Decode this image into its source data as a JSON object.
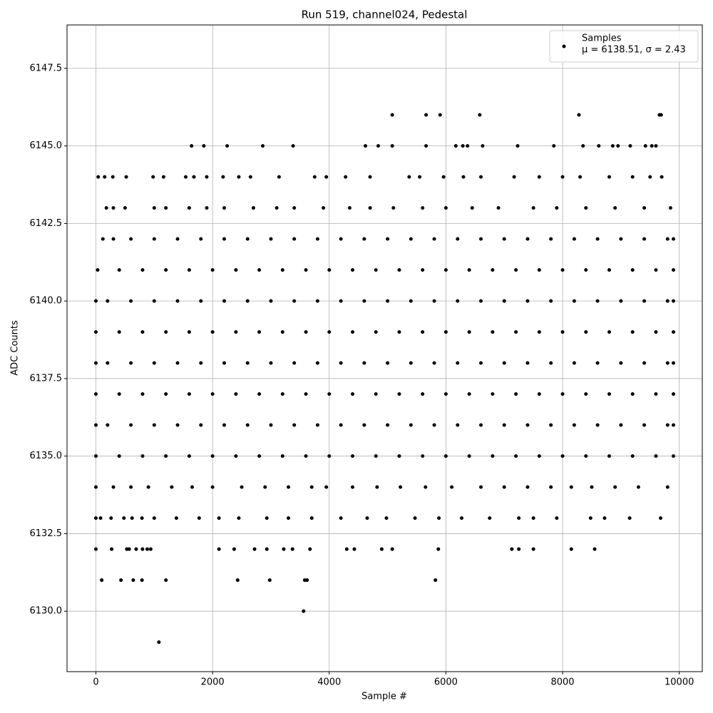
{
  "chart_data": {
    "type": "scatter",
    "title": "Run 519, channel024, Pedestal",
    "x_label": "Sample #",
    "y_label": "ADC Counts",
    "xlim": [
      -495,
      10395
    ],
    "ylim": [
      6128.05,
      6148.9
    ],
    "xticks": [
      0,
      2000,
      4000,
      6000,
      8000,
      10000
    ],
    "yticks": [
      {
        "value": 6130,
        "label": "6130.0"
      },
      {
        "value": 6132.5,
        "label": "6132.5"
      },
      {
        "value": 6135,
        "label": "6135.0"
      },
      {
        "value": 6137.5,
        "label": "6137.5"
      },
      {
        "value": 6140,
        "label": "6140.0"
      },
      {
        "value": 6142.5,
        "label": "6142.5"
      },
      {
        "value": 6145,
        "label": "6145.0"
      },
      {
        "value": 6147.5,
        "label": "6147.5"
      }
    ],
    "grid": true,
    "legend": "upper right",
    "series": [
      {
        "name": "Samples",
        "legend_note": "μ = 6138.51, σ = 2.43",
        "color": "#000000",
        "rows": [
          {
            "y": 6129,
            "x": [
              1080
            ]
          },
          {
            "y": 6130,
            "x": [
              3560
            ]
          },
          {
            "y": 6131,
            "x": [
              100,
              430,
              640,
              790,
              1200,
              2430,
              2980,
              3580,
              3620,
              5820
            ]
          },
          {
            "y": 6132,
            "x": [
              0,
              270,
              530,
              570,
              690,
              800,
              880,
              940,
              2110,
              2370,
              2720,
              2930,
              3220,
              3370,
              3670,
              4300,
              4430,
              4900,
              5080,
              5870,
              7130,
              7250,
              7500,
              8150,
              8550
            ]
          },
          {
            "y": 6133,
            "x": [
              0,
              80,
              260,
              480,
              620,
              790,
              1000,
              1380,
              1770,
              2110,
              2450,
              2930,
              3300,
              3700,
              4200,
              4650,
              4980,
              5470,
              5880,
              6270,
              6750,
              7250,
              7500,
              7900,
              8480,
              8720,
              9150,
              9680
            ]
          },
          {
            "y": 6134,
            "x": [
              0,
              300,
              600,
              900,
              1300,
              1650,
              2000,
              2500,
              2900,
              3300,
              3700,
              3950,
              4400,
              4820,
              5220,
              5650,
              6100,
              6600,
              7000,
              7400,
              7800,
              8150,
              8500,
              8900,
              9300,
              9800
            ]
          },
          {
            "y": 6135,
            "x": [
              0,
              400,
              800,
              1200,
              1600,
              2000,
              2400,
              2800,
              3200,
              3600,
              4000,
              4400,
              4800,
              5200,
              5600,
              6000,
              6400,
              6800,
              7200,
              7600,
              8000,
              8400,
              8800,
              9200,
              9600,
              9900
            ]
          },
          {
            "y": 6136,
            "x": [
              0,
              200,
              600,
              1000,
              1400,
              1800,
              2200,
              2600,
              3000,
              3400,
              3800,
              4200,
              4600,
              5000,
              5400,
              5800,
              6200,
              6600,
              7000,
              7400,
              7800,
              8200,
              8600,
              9000,
              9400,
              9800,
              9900
            ]
          },
          {
            "y": 6137,
            "x": [
              0,
              400,
              800,
              1200,
              1600,
              2000,
              2400,
              2800,
              3200,
              3600,
              4000,
              4400,
              4800,
              5200,
              5600,
              6000,
              6400,
              6800,
              7200,
              7600,
              8000,
              8400,
              8800,
              9200,
              9600,
              9900
            ]
          },
          {
            "y": 6138,
            "x": [
              0,
              200,
              600,
              1000,
              1400,
              1800,
              2200,
              2600,
              3000,
              3400,
              3800,
              4200,
              4600,
              5000,
              5400,
              5800,
              6200,
              6600,
              7000,
              7400,
              7800,
              8200,
              8600,
              9000,
              9400,
              9800,
              9900
            ]
          },
          {
            "y": 6139,
            "x": [
              0,
              400,
              800,
              1200,
              1600,
              2000,
              2400,
              2800,
              3200,
              3600,
              4000,
              4400,
              4800,
              5200,
              5600,
              6000,
              6400,
              6800,
              7200,
              7600,
              8000,
              8400,
              8800,
              9200,
              9600,
              9900
            ]
          },
          {
            "y": 6140,
            "x": [
              0,
              200,
              600,
              1000,
              1400,
              1800,
              2200,
              2600,
              3000,
              3400,
              3800,
              4200,
              4600,
              5000,
              5400,
              5800,
              6200,
              6600,
              7000,
              7400,
              7800,
              8200,
              8600,
              9000,
              9400,
              9800,
              9900
            ]
          },
          {
            "y": 6141,
            "x": [
              30,
              400,
              800,
              1200,
              1600,
              2000,
              2400,
              2800,
              3200,
              3600,
              4000,
              4400,
              4800,
              5200,
              5600,
              6000,
              6400,
              6800,
              7200,
              7600,
              8000,
              8400,
              8800,
              9200,
              9600,
              9900
            ]
          },
          {
            "y": 6142,
            "x": [
              120,
              300,
              600,
              1000,
              1400,
              1800,
              2200,
              2600,
              3000,
              3400,
              3800,
              4200,
              4600,
              5000,
              5400,
              5800,
              6200,
              6600,
              7000,
              7400,
              7800,
              8200,
              8600,
              9000,
              9400,
              9800,
              9900
            ]
          },
          {
            "y": 6143,
            "x": [
              180,
              300,
              500,
              1000,
              1200,
              1600,
              1900,
              2200,
              2700,
              3100,
              3400,
              3900,
              4350,
              4700,
              5100,
              5600,
              6000,
              6450,
              6900,
              7500,
              7900,
              8400,
              8900,
              9400,
              9850
            ]
          },
          {
            "y": 6144,
            "x": [
              40,
              150,
              290,
              520,
              980,
              1160,
              1540,
              1680,
              1900,
              2180,
              2450,
              2650,
              3140,
              3750,
              3950,
              4280,
              4700,
              5370,
              5550,
              5960,
              6300,
              6600,
              7170,
              7600,
              8000,
              8300,
              8800,
              9200,
              9500,
              9700
            ]
          },
          {
            "y": 6145,
            "x": [
              1640,
              1850,
              2250,
              2860,
              3380,
              4620,
              4840,
              5080,
              5660,
              6170,
              6290,
              6370,
              6630,
              7230,
              7850,
              8350,
              8620,
              8860,
              8950,
              9160,
              9420,
              9530,
              9600
            ]
          },
          {
            "y": 6146,
            "x": [
              5080,
              5660,
              5900,
              6580,
              8280,
              9660,
              9690
            ]
          }
        ]
      }
    ]
  }
}
